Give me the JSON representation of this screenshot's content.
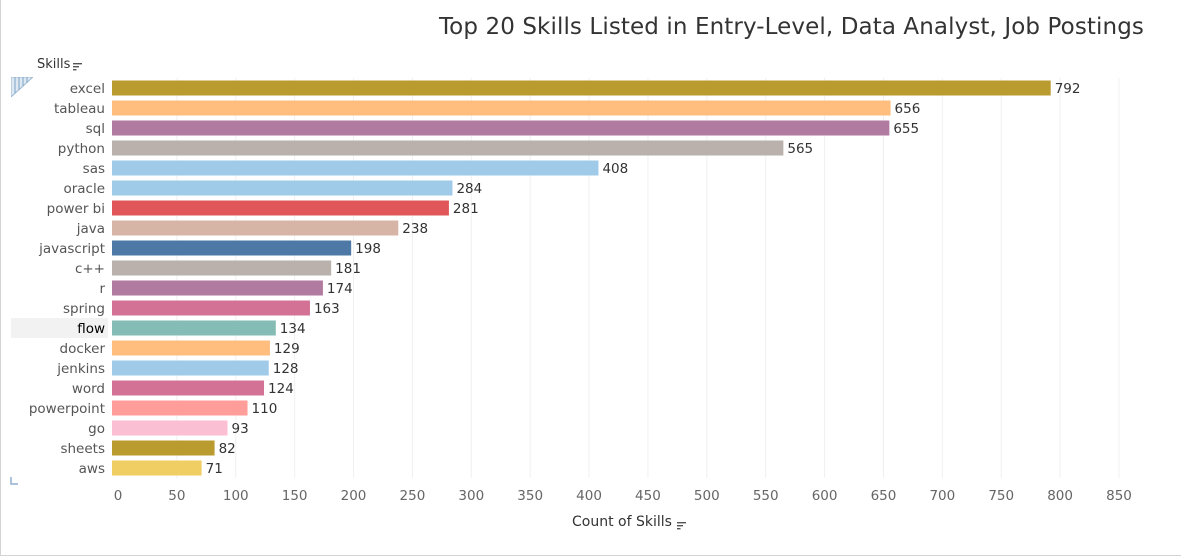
{
  "chart_data": {
    "type": "bar",
    "orientation": "horizontal",
    "title": "Top 20 Skills Listed in Entry-Level, Data Analyst, Job Postings",
    "ylabel": "Skills",
    "xlabel": "Count of Skills",
    "xlim": [
      0,
      850
    ],
    "xticks": [
      0,
      50,
      100,
      150,
      200,
      250,
      300,
      350,
      400,
      450,
      500,
      550,
      600,
      650,
      700,
      750,
      800,
      850
    ],
    "grid": true,
    "highlighted_category": "flow",
    "categories": [
      "excel",
      "tableau",
      "sql",
      "python",
      "sas",
      "oracle",
      "power bi",
      "java",
      "javascript",
      "c++",
      "r",
      "spring",
      "flow",
      "docker",
      "jenkins",
      "word",
      "powerpoint",
      "go",
      "sheets",
      "aws"
    ],
    "values": [
      792,
      656,
      655,
      565,
      408,
      284,
      281,
      238,
      198,
      181,
      174,
      163,
      134,
      129,
      128,
      124,
      110,
      93,
      82,
      71
    ],
    "colors": [
      "#b99b2f",
      "#ffbe7d",
      "#b07aa1",
      "#bab0ac",
      "#a0cbe8",
      "#a0cbe8",
      "#e15759",
      "#d7b5a6",
      "#4e79a7",
      "#bab0ac",
      "#b07aa1",
      "#d37295",
      "#86bcb6",
      "#ffbe7d",
      "#a0cbe8",
      "#d37295",
      "#ff9d9a",
      "#fabfd2",
      "#b99b2f",
      "#f1ce63"
    ]
  },
  "icons": {
    "row_sort": "sort-descending-icon",
    "axis_sort": "sort-descending-icon",
    "corner": "hatched-corner-icon"
  }
}
